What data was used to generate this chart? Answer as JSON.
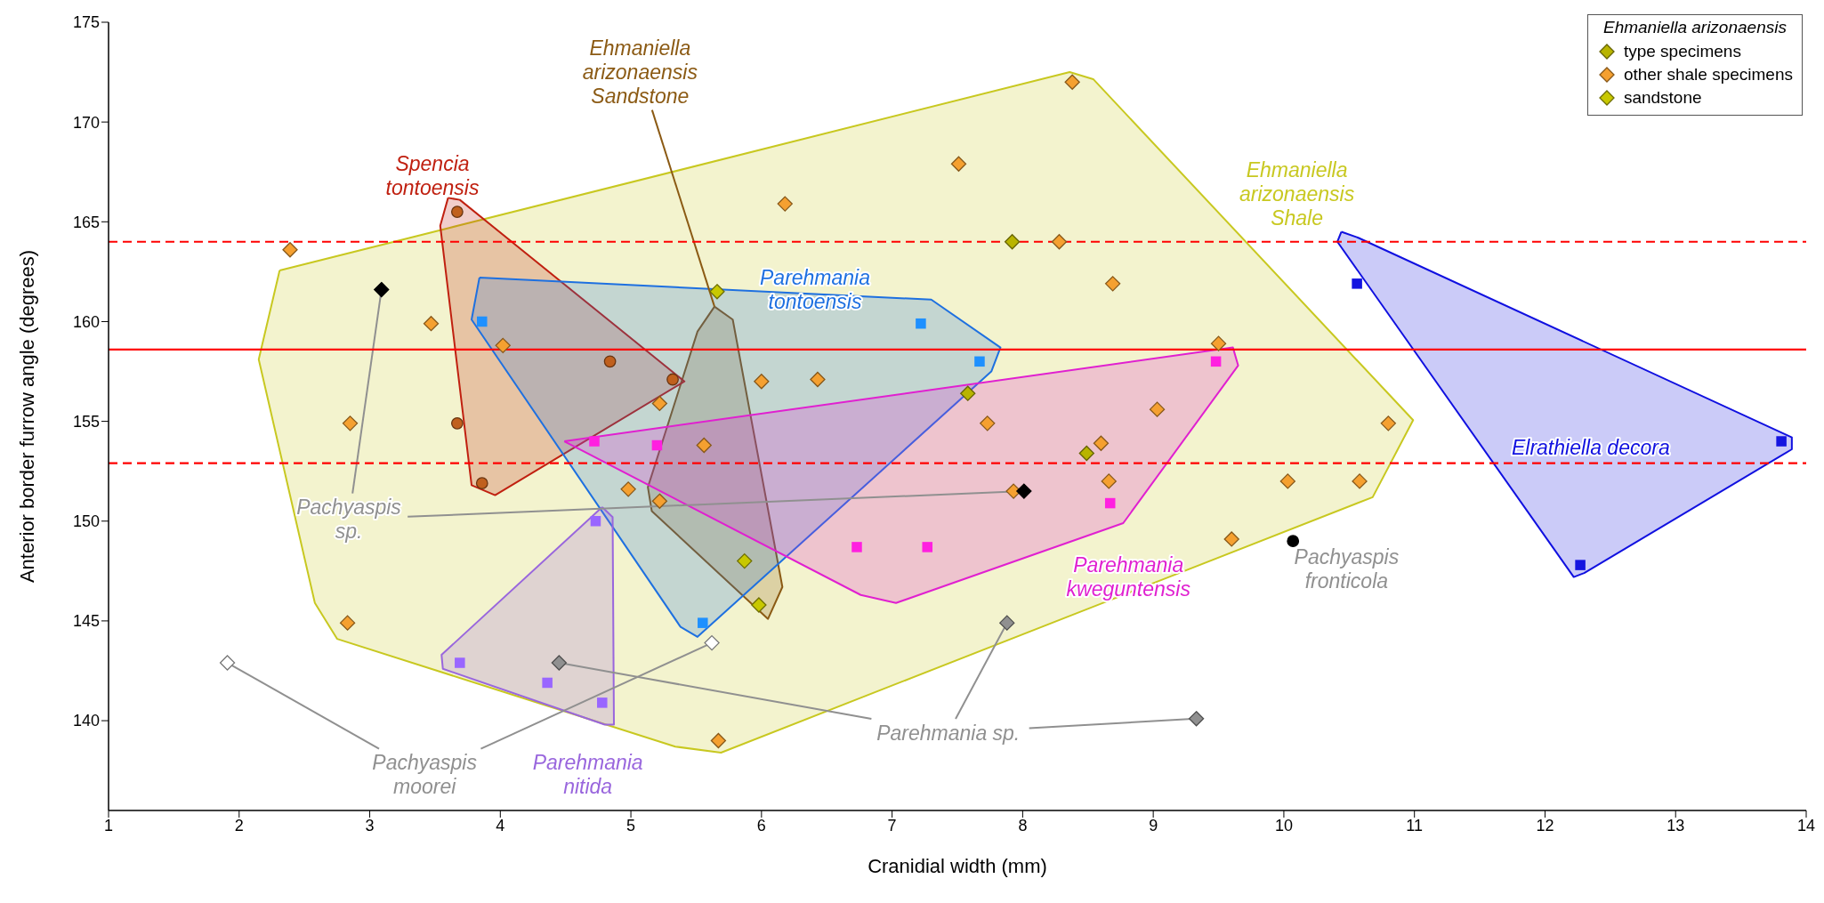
{
  "chart_data": {
    "type": "scatter",
    "xlabel": "Cranidial width (mm)",
    "ylabel": "Anterior border furrow angle (degrees)",
    "legend_title": "Ehmaniella arizonaensis",
    "legend": "top right",
    "xlim": [
      1,
      14
    ],
    "xticks": [
      1,
      2,
      3,
      4,
      5,
      6,
      7,
      8,
      9,
      10,
      11,
      12,
      13,
      14
    ],
    "ylim": [
      135.5,
      175
    ],
    "yticks": [
      140,
      145,
      150,
      155,
      160,
      165,
      170,
      175
    ],
    "ref_lines": [
      {
        "axis": "y",
        "value": 158.6,
        "color": "#ff0000",
        "line_style": "solid"
      },
      {
        "axis": "y",
        "value": 164,
        "color": "#ff0000",
        "line_style": "dashed"
      },
      {
        "axis": "y",
        "value": 152.9,
        "color": "#ff0000",
        "line_style": "dashed"
      }
    ],
    "series": [
      {
        "name": "type specimens",
        "color": "#b8b400",
        "marker": "diamond",
        "x": [
          7.92,
          7.58,
          8.49
        ],
        "values": [
          164.0,
          156.4,
          153.4
        ]
      },
      {
        "name": "other shale specimens",
        "color": "#f5a030",
        "marker": "diamond",
        "x": [
          8.38,
          7.51,
          6.18,
          8.28,
          2.39,
          3.47,
          8.69,
          4.02,
          9.5,
          6.0,
          6.43,
          5.22,
          2.85,
          7.73,
          9.03,
          5.56,
          8.6,
          10.8,
          8.66,
          10.03,
          10.58,
          7.93,
          4.98,
          5.22,
          9.6,
          2.83,
          5.67
        ],
        "values": [
          172.0,
          167.9,
          165.9,
          164.0,
          163.6,
          159.9,
          161.9,
          158.8,
          158.9,
          157.0,
          157.1,
          155.9,
          154.9,
          154.9,
          155.6,
          153.8,
          153.9,
          154.9,
          152.0,
          152.0,
          152.0,
          151.5,
          151.6,
          151.0,
          149.1,
          144.9,
          139.0
        ]
      },
      {
        "name": "sandstone",
        "color": "#c8c800",
        "marker": "diamond",
        "x": [
          5.66,
          5.87,
          5.98
        ],
        "values": [
          161.5,
          148.0,
          145.8
        ]
      },
      {
        "color": "#c0601e",
        "marker": "circle",
        "x": [
          3.67,
          4.84,
          5.32,
          3.67,
          3.86
        ],
        "values": [
          165.5,
          158.0,
          157.1,
          154.9,
          151.9
        ]
      },
      {
        "color": "#1e90ff",
        "marker": "square",
        "x": [
          3.86,
          7.22,
          7.67,
          5.55
        ],
        "values": [
          160.0,
          159.9,
          158.0,
          144.9
        ]
      },
      {
        "color": "#ff20e0",
        "marker": "square",
        "x": [
          4.72,
          5.2,
          9.48,
          8.67,
          6.73,
          7.27
        ],
        "values": [
          154.0,
          153.8,
          158.0,
          150.9,
          148.7,
          148.7
        ]
      },
      {
        "color": "#9966ff",
        "marker": "square",
        "x": [
          4.73,
          3.69,
          4.36,
          4.78
        ],
        "values": [
          150.0,
          142.9,
          141.9,
          140.9
        ]
      },
      {
        "color": "#1515e0",
        "marker": "square",
        "x": [
          10.56,
          13.81,
          12.27
        ],
        "values": [
          161.9,
          154.0,
          147.8
        ]
      },
      {
        "color": "#000000",
        "marker": "diamond",
        "x": [
          3.09,
          8.01
        ],
        "values": [
          161.6,
          151.5
        ]
      },
      {
        "color": "#000000",
        "marker": "circle",
        "x": [
          10.07
        ],
        "values": [
          149.0
        ]
      },
      {
        "color": "#ffffff",
        "marker": "diamond",
        "x": [
          1.91,
          5.62
        ],
        "values": [
          142.9,
          143.9
        ]
      },
      {
        "color": "#909090",
        "marker": "diamond",
        "x": [
          4.45,
          7.88,
          9.33
        ],
        "values": [
          142.9,
          144.9,
          140.1
        ]
      },
      {
        "type": "area",
        "color": "#c8c820",
        "x": [
          2.31,
          8.36,
          8.54,
          10.99,
          10.68,
          5.69,
          5.34,
          2.75,
          2.58,
          2.15,
          2.31
        ],
        "values": [
          162.56,
          172.5,
          172.15,
          155.06,
          151.2,
          138.4,
          138.7,
          144.1,
          145.9,
          158.1,
          162.56
        ]
      },
      {
        "type": "area",
        "color": "#8b5a14",
        "x": [
          5.64,
          5.78,
          6.16,
          6.05,
          5.16,
          5.13,
          5.51,
          5.64
        ],
        "values": [
          160.75,
          160.1,
          146.7,
          145.1,
          150.5,
          151.7,
          159.5,
          160.75
        ]
      },
      {
        "type": "area",
        "color": "#c02010",
        "x": [
          3.6,
          3.69,
          5.41,
          3.96,
          3.78,
          3.54,
          3.6
        ],
        "values": [
          166.2,
          166.1,
          157.0,
          151.3,
          151.8,
          164.8,
          166.2
        ]
      },
      {
        "type": "area",
        "color": "#1e70e0",
        "x": [
          3.84,
          7.3,
          7.83,
          7.76,
          5.51,
          5.38,
          3.78,
          3.84
        ],
        "values": [
          162.2,
          161.1,
          158.7,
          157.5,
          144.2,
          144.7,
          160.1,
          162.2
        ]
      },
      {
        "type": "area",
        "color": "#e020d0",
        "x": [
          4.49,
          9.61,
          9.65,
          8.77,
          7.03,
          6.76,
          4.49
        ],
        "values": [
          154.0,
          158.7,
          157.8,
          149.9,
          145.9,
          146.3,
          154.0
        ]
      },
      {
        "type": "area",
        "color": "#9966dd",
        "x": [
          4.78,
          4.86,
          4.87,
          4.8,
          3.56,
          3.55,
          4.78
        ],
        "values": [
          150.7,
          150.2,
          139.8,
          139.8,
          142.6,
          143.3,
          150.7
        ]
      },
      {
        "type": "area",
        "color": "#1010e0",
        "x": [
          10.44,
          10.57,
          13.89,
          13.89,
          12.3,
          12.22,
          10.41,
          10.44
        ],
        "values": [
          164.5,
          164.2,
          154.2,
          153.6,
          147.4,
          147.2,
          164.0,
          164.5
        ]
      }
    ],
    "annotations": [
      {
        "text": "Ehmaniella arizonaensis Sandstone",
        "x": 5.64,
        "y": 160.75
      },
      "Spencia tontoensis",
      "Ehmaniella arizonaensis Shale",
      "Parehmania tontoensis",
      "Elrathiella decora",
      {
        "text": "Pachyaspis sp.",
        "x": 3.09,
        "y": 161.6
      },
      "Parehmania kweguntensis",
      "Pachyaspis fronticola",
      {
        "text": "Parehmania sp.",
        "x": 4.45,
        "y": 142.9
      },
      {
        "text": "Pachyaspis moorei",
        "x": 1.91,
        "y": 142.9
      },
      "Parehmania nitida"
    ]
  }
}
